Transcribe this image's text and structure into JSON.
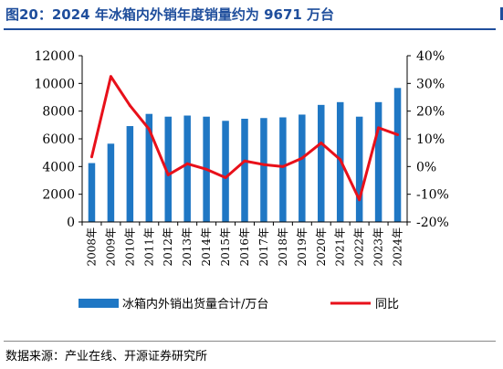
{
  "header": {
    "title": "图20：2024 年冰箱内外销年度销量约为 9671 万台"
  },
  "footer": {
    "source": "数据来源：产业在线、开源证券研究所"
  },
  "colors": {
    "bar": "#1f77c4",
    "line": "#e8101a",
    "title": "#1f4e9c"
  },
  "chart_data": {
    "type": "bar",
    "categories": [
      "2008年",
      "2009年",
      "2010年",
      "2011年",
      "2012年",
      "2013年",
      "2014年",
      "2015年",
      "2016年",
      "2017年",
      "2018年",
      "2019年",
      "2020年",
      "2021年",
      "2022年",
      "2023年",
      "2024年"
    ],
    "series": [
      {
        "name": "冰箱内外销出货量合计/万台",
        "type": "bar",
        "axis": "left",
        "values": [
          4250,
          5650,
          6920,
          7800,
          7600,
          7680,
          7600,
          7300,
          7450,
          7500,
          7550,
          7750,
          8450,
          8650,
          7600,
          8650,
          9671
        ]
      },
      {
        "name": "同比",
        "type": "line",
        "axis": "right",
        "unit": "%",
        "values": [
          3.5,
          32.5,
          22.0,
          13.5,
          -3.0,
          1.0,
          -1.0,
          -4.0,
          2.0,
          0.7,
          0.0,
          3.0,
          8.5,
          2.5,
          -12.0,
          14.0,
          11.5
        ]
      }
    ],
    "y_left": {
      "ticks": [
        "0",
        "2000",
        "4000",
        "6000",
        "8000",
        "10000",
        "12000"
      ],
      "lim": [
        0,
        12000
      ]
    },
    "y_right": {
      "ticks": [
        "-20%",
        "-10%",
        "0%",
        "10%",
        "20%",
        "30%",
        "40%"
      ],
      "lim": [
        -20,
        40
      ]
    },
    "legend": {
      "placement": "bottom",
      "bar_label": "冰箱内外销出货量合计/万台",
      "line_label": "同比"
    },
    "grid": false
  }
}
